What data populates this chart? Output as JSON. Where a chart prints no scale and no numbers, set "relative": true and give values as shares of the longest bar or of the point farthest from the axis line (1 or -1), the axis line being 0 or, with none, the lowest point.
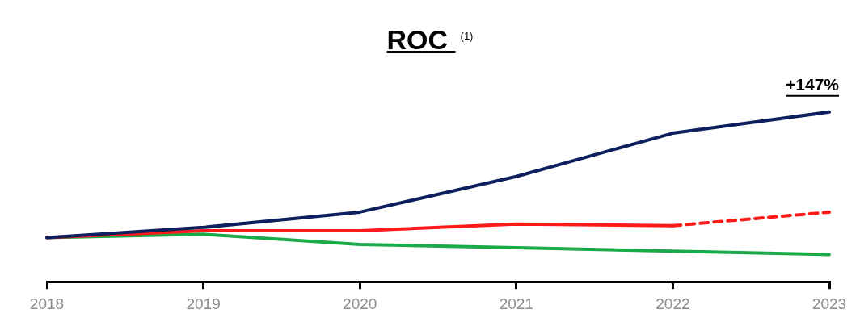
{
  "chart_data": {
    "type": "line",
    "title": "ROC $^{(1)}$",
    "relative": true,
    "categories": [
      "2018",
      "2019",
      "2020",
      "2021",
      "2022",
      "2023"
    ],
    "series": [
      {
        "color": "#0d1f5c",
        "values": [
          0.26,
          0.32,
          0.41,
          0.62,
          0.875,
          1
        ]
      },
      {
        "color": "#ff1a1a",
        "values": [
          0.26,
          0.3,
          0.3,
          0.34,
          0.33,
          null
        ]
      },
      {
        "color": "#ff1a1a",
        "line_style": "dashed",
        "values": [
          null,
          null,
          null,
          null,
          0.33,
          0.41
        ]
      },
      {
        "color": "#1aaa4a",
        "values": [
          0.26,
          0.28,
          0.22,
          0.2,
          0.18,
          0.16
        ]
      }
    ],
    "annotations": [
      {
        "text": "+147%",
        "x": "2023",
        "y": 1
      }
    ],
    "marker": "none",
    "legend": false
  }
}
